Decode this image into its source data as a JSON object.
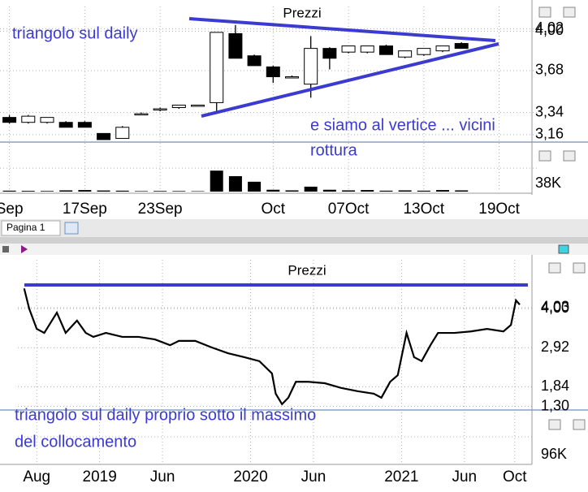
{
  "ui": {
    "tab": "Pagina 1"
  },
  "chart_data": [
    {
      "type": "candlestick",
      "title": "Prezzi",
      "x": [
        0,
        1,
        2,
        3,
        4,
        5,
        6,
        7,
        8,
        9,
        10,
        11,
        12,
        13,
        14,
        15,
        16,
        17,
        18,
        19,
        20,
        21,
        22,
        23,
        24
      ],
      "open": [
        3.3,
        3.26,
        3.26,
        3.26,
        3.26,
        3.17,
        3.13,
        3.33,
        3.36,
        3.38,
        3.39,
        3.42,
        3.98,
        3.8,
        3.71,
        3.63,
        3.57,
        3.86,
        3.83,
        3.83,
        3.88,
        3.79,
        3.81,
        3.84,
        3.9
      ],
      "high": [
        3.32,
        3.32,
        3.3,
        3.27,
        3.27,
        3.17,
        3.23,
        3.34,
        3.38,
        3.4,
        3.4,
        3.99,
        4.05,
        3.81,
        3.72,
        3.64,
        3.96,
        3.87,
        3.88,
        3.88,
        3.89,
        3.84,
        3.86,
        3.88,
        3.91
      ],
      "low": [
        3.25,
        3.25,
        3.25,
        3.22,
        3.22,
        3.12,
        3.13,
        3.33,
        3.35,
        3.37,
        3.39,
        3.33,
        3.78,
        3.72,
        3.58,
        3.62,
        3.46,
        3.69,
        3.82,
        3.82,
        3.81,
        3.78,
        3.8,
        3.83,
        3.86
      ],
      "close": [
        3.26,
        3.31,
        3.3,
        3.22,
        3.22,
        3.12,
        3.22,
        3.33,
        3.37,
        3.4,
        3.4,
        3.99,
        3.78,
        3.72,
        3.63,
        3.63,
        3.86,
        3.78,
        3.88,
        3.88,
        3.81,
        3.84,
        3.86,
        3.88,
        3.86
      ],
      "volume": [
        1500,
        1200,
        1000,
        2000,
        2500,
        1800,
        1500,
        800,
        1000,
        900,
        700,
        34000,
        25000,
        16000,
        3000,
        2000,
        8000,
        3000,
        2000,
        2500,
        1500,
        2000,
        1500,
        2500,
        2000
      ],
      "xlim": [
        -0.5,
        28
      ],
      "xticks": [
        {
          "value": 0,
          "label": "Sep"
        },
        {
          "value": 4,
          "label": "17Sep"
        },
        {
          "value": 8,
          "label": "23Sep"
        },
        {
          "value": 14,
          "label": "Oct"
        },
        {
          "value": 18,
          "label": "07Oct"
        },
        {
          "value": 22,
          "label": "13Oct"
        },
        {
          "value": 26,
          "label": "19Oct"
        }
      ],
      "ylim": [
        3.1,
        4.2
      ],
      "yticks": [
        {
          "value": 4.02,
          "label": "4,02"
        },
        {
          "value": 4.0,
          "label": "4,00"
        },
        {
          "value": 3.68,
          "label": "3,68"
        },
        {
          "value": 3.34,
          "label": "3,34"
        },
        {
          "value": 3.16,
          "label": "3,16"
        }
      ],
      "volume_ylim": [
        0,
        50000
      ],
      "volume_yticks": [
        {
          "value": 38000,
          "label": "38K"
        }
      ],
      "up_color": "#ffffff",
      "down_color": "#000000",
      "grid": true,
      "annotations": [
        "triangolo sul daily",
        "e siamo al vertice ... vicini",
        "rottura"
      ]
    },
    {
      "type": "line",
      "title": "Prezzi",
      "x": [
        -1,
        -0.6,
        0,
        0.6,
        1.6,
        2.3,
        3.2,
        3.9,
        4.5,
        5.5,
        6.8,
        8.1,
        9.4,
        10.6,
        11.3,
        12.6,
        13.9,
        15.2,
        16.5,
        17.7,
        18.7,
        19,
        19.5,
        20,
        20.6,
        21.6,
        22.9,
        24.2,
        25.5,
        26.8,
        27.4,
        28.1,
        28.7,
        29.4,
        30,
        30.6,
        31.3,
        31.9,
        33.2,
        34.5,
        35.8,
        37.1,
        37.7,
        38.1,
        38.4
      ],
      "values": [
        4.56,
        4.0,
        3.44,
        3.33,
        3.89,
        3.33,
        3.67,
        3.33,
        3.22,
        3.33,
        3.22,
        3.22,
        3.15,
        2.99,
        3.11,
        3.11,
        2.93,
        2.77,
        2.66,
        2.55,
        2.21,
        1.65,
        1.36,
        1.54,
        1.98,
        1.98,
        1.94,
        1.81,
        1.72,
        1.65,
        1.54,
        1.98,
        2.16,
        3.33,
        2.66,
        2.55,
        2.99,
        3.33,
        3.33,
        3.37,
        3.44,
        3.37,
        3.55,
        4.23,
        4.11
      ],
      "color": "#000000",
      "xlim": [
        -1.5,
        39.5
      ],
      "xticks": [
        {
          "value": 0,
          "label": "Aug"
        },
        {
          "value": 5,
          "label": "2019"
        },
        {
          "value": 10,
          "label": "Jun"
        },
        {
          "value": 17,
          "label": "2020"
        },
        {
          "value": 22,
          "label": "Jun"
        },
        {
          "value": 29,
          "label": "2021"
        },
        {
          "value": 34,
          "label": "Jun"
        },
        {
          "value": 38,
          "label": "Oct"
        }
      ],
      "ylim": [
        1.2,
        5.35
      ],
      "yticks": [
        {
          "value": 4.03,
          "label": "4,03"
        },
        {
          "value": 4.0,
          "label": "4,00"
        },
        {
          "value": 2.92,
          "label": "2,92"
        },
        {
          "value": 1.84,
          "label": "1,84"
        },
        {
          "value": 1.3,
          "label": "1,30"
        }
      ],
      "volume_ylim": [
        0,
        150000
      ],
      "volume_yticks": [
        {
          "value": 96000,
          "label": "96K"
        }
      ],
      "grid": true,
      "annotations": [
        "triangolo sul daily proprio sotto il massimo",
        "del collocamento"
      ]
    }
  ]
}
